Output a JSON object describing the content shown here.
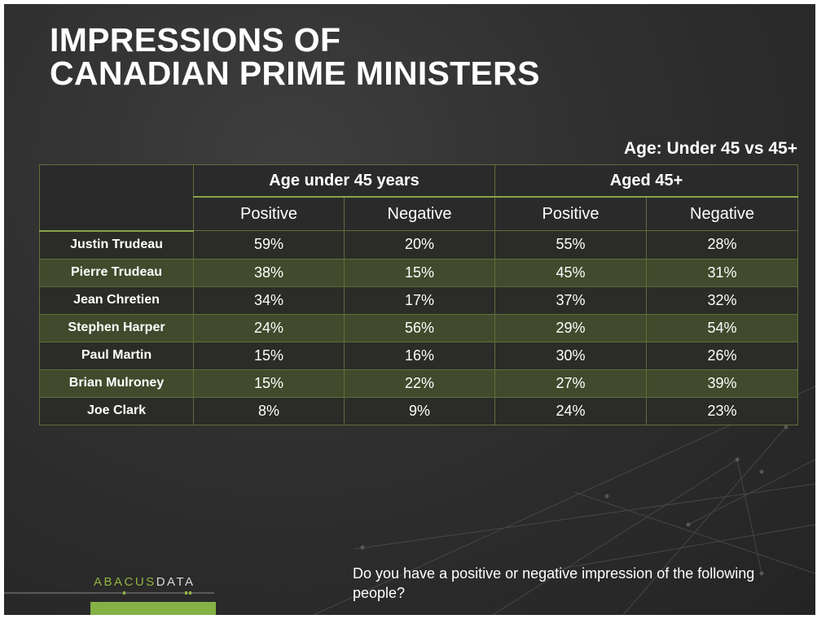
{
  "title_lines": [
    "IMPRESSIONS OF",
    "CANADIAN PRIME MINISTERS"
  ],
  "subtitle": "Age: Under 45 vs 45+",
  "question": "Do you have a positive or negative impression of the following people?",
  "logo": {
    "part1": "ABACUS",
    "part2": "DATA",
    "accent": "#8fb440"
  },
  "colors": {
    "row_even": "#414a2c",
    "row_odd": "#2b2b28",
    "border": "#5f6e3a",
    "bar": "#84b245"
  },
  "chart_data": {
    "type": "table",
    "groups": [
      "Age under 45 years",
      "Aged 45+"
    ],
    "columns": [
      "Positive",
      "Negative",
      "Positive",
      "Negative"
    ],
    "rows": [
      {
        "name": "Justin Trudeau",
        "values": [
          "59%",
          "20%",
          "55%",
          "28%"
        ]
      },
      {
        "name": "Pierre Trudeau",
        "values": [
          "38%",
          "15%",
          "45%",
          "31%"
        ]
      },
      {
        "name": "Jean Chretien",
        "values": [
          "34%",
          "17%",
          "37%",
          "32%"
        ]
      },
      {
        "name": "Stephen Harper",
        "values": [
          "24%",
          "56%",
          "29%",
          "54%"
        ]
      },
      {
        "name": "Paul Martin",
        "values": [
          "15%",
          "16%",
          "30%",
          "26%"
        ]
      },
      {
        "name": "Brian Mulroney",
        "values": [
          "15%",
          "22%",
          "27%",
          "39%"
        ]
      },
      {
        "name": "Joe Clark",
        "values": [
          "8%",
          "9%",
          "24%",
          "23%"
        ]
      }
    ]
  }
}
